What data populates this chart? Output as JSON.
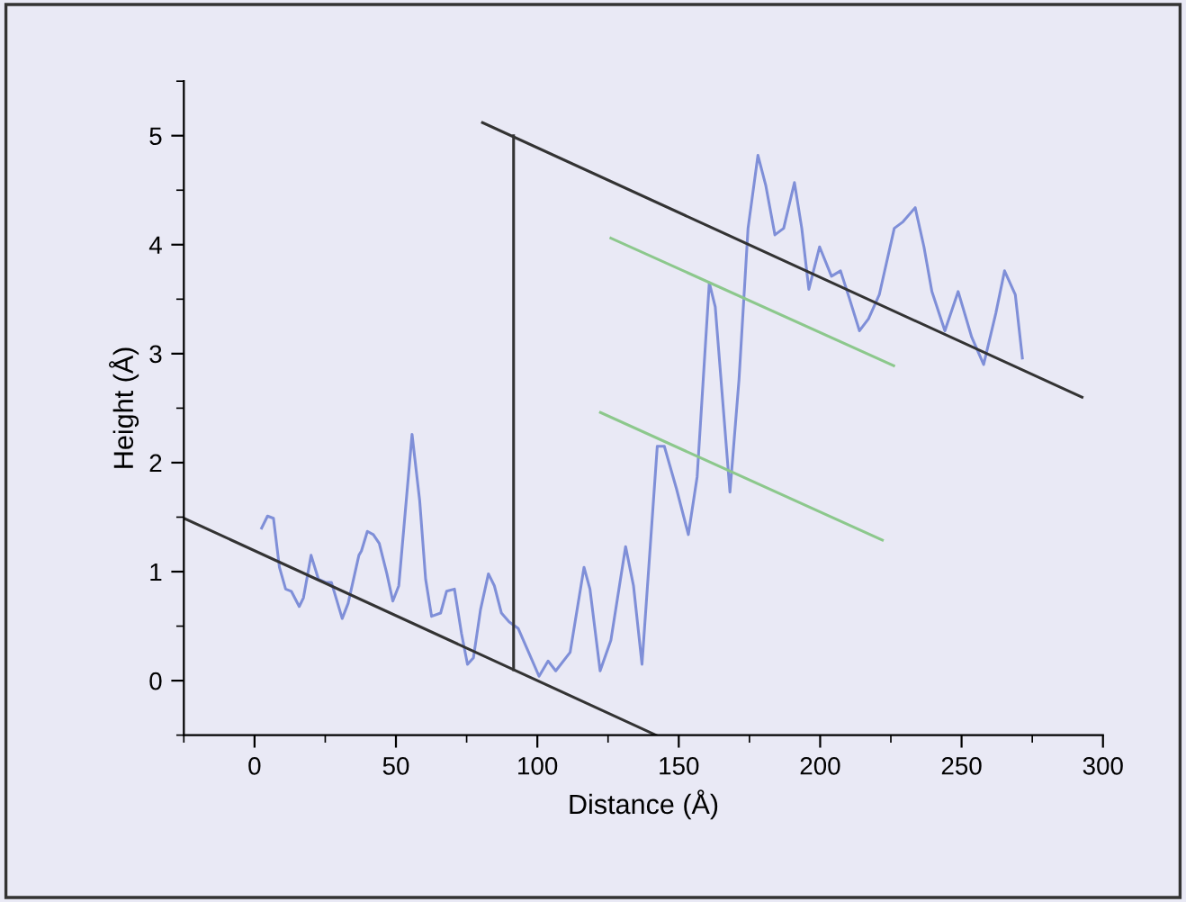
{
  "chart_data": {
    "type": "line",
    "xlabel": "Distance (Å)",
    "ylabel": "Height (Å)",
    "xlim": [
      -25,
      300
    ],
    "ylim": [
      -0.5,
      5.5
    ],
    "xticks": [
      0,
      50,
      100,
      150,
      200,
      250,
      300
    ],
    "yticks": [
      0,
      1,
      2,
      3,
      4,
      5
    ],
    "grid": false,
    "legend": false,
    "marker": "none",
    "line_style": "solid",
    "series": [
      {
        "color": "#7f8fd8",
        "x": [
          2.5,
          4.6,
          6.7,
          8.8,
          11,
          13,
          15.8,
          17.3,
          20,
          22.6,
          25.3,
          27.2,
          31,
          33.1,
          36.9,
          37.8,
          39.9,
          42,
          44.1,
          46.8,
          48.9,
          51,
          55.7,
          58.4,
          60.5,
          62.6,
          65.8,
          67.9,
          70.7,
          73.2,
          75.3,
          77.4,
          79.9,
          82.7,
          84.8,
          87.3,
          90,
          93.2,
          96.4,
          100.6,
          103.8,
          106.5,
          111.6,
          116.5,
          118.6,
          122.2,
          126,
          131.2,
          134,
          137,
          142.4,
          144.9,
          149.2,
          153.4,
          156.5,
          160.8,
          162.9,
          168.1,
          171.3,
          174.5,
          178,
          180.8,
          184,
          187.1,
          190.9,
          193.5,
          196,
          199.8,
          204,
          207.2,
          210.3,
          213.9,
          217.1,
          220.9,
          226.2,
          229.3,
          233.6,
          236.7,
          239.5,
          244.1,
          248.8,
          253.6,
          257.8,
          262.1,
          265.2,
          269,
          271.5
        ],
        "values": [
          1.4,
          1.51,
          1.49,
          1.04,
          0.84,
          0.82,
          0.68,
          0.76,
          1.15,
          0.93,
          0.9,
          0.9,
          0.57,
          0.71,
          1.15,
          1.19,
          1.37,
          1.34,
          1.26,
          0.98,
          0.73,
          0.87,
          2.26,
          1.65,
          0.93,
          0.59,
          0.62,
          0.82,
          0.84,
          0.43,
          0.15,
          0.21,
          0.65,
          0.98,
          0.87,
          0.62,
          0.54,
          0.48,
          0.29,
          0.04,
          0.18,
          0.09,
          0.26,
          1.04,
          0.84,
          0.09,
          0.37,
          1.23,
          0.87,
          0.15,
          2.15,
          2.15,
          1.76,
          1.34,
          1.87,
          3.65,
          3.43,
          1.73,
          2.76,
          4.15,
          4.82,
          4.54,
          4.09,
          4.15,
          4.57,
          4.15,
          3.59,
          3.98,
          3.71,
          3.76,
          3.51,
          3.21,
          3.32,
          3.54,
          4.15,
          4.21,
          4.34,
          3.98,
          3.57,
          3.21,
          3.57,
          3.15,
          2.9,
          3.37,
          3.76,
          3.54,
          2.96
        ]
      },
      {
        "color": "#333333",
        "x": [
          -25,
          142
        ],
        "values": [
          1.49,
          -0.5
        ]
      },
      {
        "color": "#333333",
        "x": [
          80.6,
          292.6
        ],
        "values": [
          5.12,
          2.6
        ]
      },
      {
        "color": "#8cc88c",
        "x": [
          126,
          226
        ],
        "values": [
          4.06,
          2.89
        ]
      },
      {
        "color": "#8cc88c",
        "x": [
          122.3,
          222
        ],
        "values": [
          2.46,
          1.29
        ]
      },
      {
        "color": "#333333",
        "x": [
          91.6,
          91.6
        ],
        "values": [
          0.1,
          5.0
        ]
      }
    ]
  }
}
